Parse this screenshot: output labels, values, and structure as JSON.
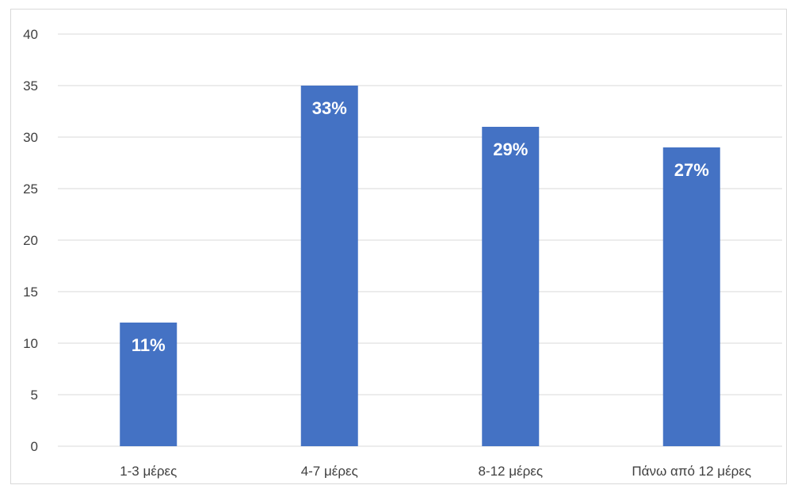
{
  "chart_data": {
    "type": "bar",
    "categories": [
      "1-3 μέρες",
      "4-7 μέρες",
      "8-12 μέρες",
      "Πάνω από 12 μέρες"
    ],
    "values": [
      12,
      35,
      31,
      29
    ],
    "data_labels": [
      "11%",
      "33%",
      "29%",
      "27%"
    ],
    "title": "",
    "xlabel": "",
    "ylabel": "",
    "ylim": [
      0,
      40
    ],
    "yticks": [
      0,
      5,
      10,
      15,
      20,
      25,
      30,
      35,
      40
    ],
    "grid": true,
    "legend": "none",
    "bar_color": "#4472C4",
    "grid_color": "#d9d9d9"
  }
}
